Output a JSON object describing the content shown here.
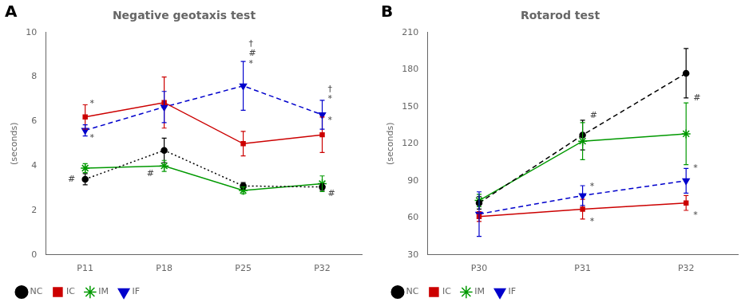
{
  "chart_data": [
    {
      "type": "line",
      "panel_label": "A",
      "title": "Negative geotaxis test",
      "y_label": "(seconds)",
      "categories": [
        "P11",
        "P18",
        "P25",
        "P32"
      ],
      "series": [
        {
          "name": "NC",
          "color": "#000000",
          "line_style": "dotted",
          "marker": "circle",
          "values": [
            3.4,
            4.7,
            3.1,
            3.05
          ],
          "errors": [
            0.25,
            0.55,
            0.15,
            0.15
          ]
        },
        {
          "name": "IC",
          "color": "#cc0000",
          "line_style": "solid",
          "marker": "square",
          "values": [
            6.2,
            6.85,
            5.0,
            5.4
          ],
          "errors": [
            0.55,
            1.15,
            0.55,
            0.8
          ]
        },
        {
          "name": "IM",
          "color": "#009900",
          "line_style": "solid",
          "marker": "star",
          "values": [
            3.9,
            4.0,
            2.9,
            3.2
          ],
          "errors": [
            0.2,
            0.25,
            0.15,
            0.35
          ]
        },
        {
          "name": "IF",
          "color": "#0000cc",
          "line_style": "dashed",
          "marker": "triangle_down",
          "values": [
            5.6,
            6.65,
            7.6,
            6.3
          ],
          "errors": [
            0.25,
            0.7,
            1.1,
            0.65
          ]
        }
      ],
      "ylim": [
        0,
        10
      ],
      "yticks": [
        0,
        2,
        4,
        6,
        8,
        10
      ],
      "grid": false,
      "legend": "lower left",
      "annotations": [
        {
          "text": "*",
          "category": "P11",
          "x_offset": 0.06,
          "y": 6.8,
          "color": "#444444"
        },
        {
          "text": "*",
          "category": "P11",
          "x_offset": 0.06,
          "y": 5.25,
          "color": "#444444"
        },
        {
          "text": "#",
          "category": "P11",
          "x_offset": -0.22,
          "y": 3.4,
          "color": "#444444"
        },
        {
          "text": "#",
          "category": "P18",
          "x_offset": -0.22,
          "y": 3.65,
          "color": "#444444"
        },
        {
          "text": "†",
          "category": "P25",
          "x_offset": 0.07,
          "y": 9.5,
          "color": "#444444"
        },
        {
          "text": "#",
          "category": "P25",
          "x_offset": 0.07,
          "y": 9.05,
          "color": "#444444"
        },
        {
          "text": "*",
          "category": "P25",
          "x_offset": 0.07,
          "y": 8.6,
          "color": "#444444"
        },
        {
          "text": "†",
          "category": "P32",
          "x_offset": 0.07,
          "y": 7.45,
          "color": "#444444"
        },
        {
          "text": "*",
          "category": "P32",
          "x_offset": 0.07,
          "y": 7.0,
          "color": "#444444"
        },
        {
          "text": "*",
          "category": "P32",
          "x_offset": 0.07,
          "y": 6.05,
          "color": "#444444"
        },
        {
          "text": "#",
          "category": "P32",
          "x_offset": 0.07,
          "y": 2.75,
          "color": "#444444"
        }
      ]
    },
    {
      "type": "line",
      "panel_label": "B",
      "title": "Rotarod test",
      "y_label": "(seconds)",
      "categories": [
        "P30",
        "P31",
        "P32"
      ],
      "series": [
        {
          "name": "NC",
          "color": "#000000",
          "line_style": "dashed",
          "marker": "circle",
          "values": [
            72,
            127,
            177
          ],
          "errors": [
            5,
            12,
            20
          ]
        },
        {
          "name": "IC",
          "color": "#cc0000",
          "line_style": "solid",
          "marker": "square",
          "values": [
            61,
            67,
            72
          ],
          "errors": [
            4,
            8,
            6
          ]
        },
        {
          "name": "IM",
          "color": "#009900",
          "line_style": "solid",
          "marker": "star",
          "values": [
            74,
            122,
            128
          ],
          "errors": [
            5,
            15,
            25
          ]
        },
        {
          "name": "IF",
          "color": "#0000cc",
          "line_style": "dashed",
          "marker": "triangle_down",
          "values": [
            63,
            78,
            90
          ],
          "errors": [
            18,
            8,
            10
          ]
        }
      ],
      "ylim": [
        30,
        210
      ],
      "yticks": [
        30,
        60,
        90,
        120,
        150,
        180,
        210
      ],
      "grid": false,
      "legend": "lower left",
      "annotations": [
        {
          "text": "#",
          "category": "P31",
          "x_offset": 0.07,
          "y": 143,
          "color": "#444444"
        },
        {
          "text": "*",
          "category": "P31",
          "x_offset": 0.07,
          "y": 85,
          "color": "#444444"
        },
        {
          "text": "*",
          "category": "P31",
          "x_offset": 0.07,
          "y": 57,
          "color": "#444444"
        },
        {
          "text": "#",
          "category": "P32",
          "x_offset": 0.07,
          "y": 157,
          "color": "#444444"
        },
        {
          "text": "*",
          "category": "P32",
          "x_offset": 0.07,
          "y": 100,
          "color": "#444444"
        },
        {
          "text": "*",
          "category": "P32",
          "x_offset": 0.07,
          "y": 62,
          "color": "#444444"
        }
      ]
    }
  ]
}
